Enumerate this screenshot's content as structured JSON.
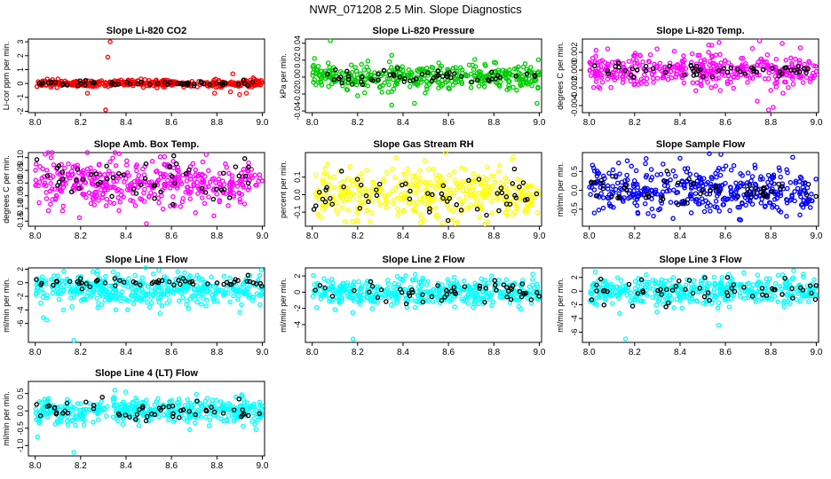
{
  "figure_title": "NWR_071208  2.5 Min. Slope Diagnostics",
  "chart_data": [
    {
      "id": "co2",
      "type": "scatter",
      "title": "Slope Li-820 CO2",
      "ylabel": "Li-cor ppm per min.",
      "xlim": [
        7.97,
        9.01
      ],
      "ylim": [
        -2.1,
        3.2
      ],
      "xticks": [
        "8.0",
        "8.2",
        "8.4",
        "8.6",
        "8.8",
        "9.0"
      ],
      "yticks": [
        {
          "v": -2,
          "label": "-2"
        },
        {
          "v": -1,
          "label": "-1"
        },
        {
          "v": 0,
          "label": "0"
        },
        {
          "v": 1,
          "label": "1"
        },
        {
          "v": 2,
          "label": "2"
        },
        {
          "v": 3,
          "label": "3"
        }
      ],
      "color": "#ff0000",
      "n": 380,
      "center": 0.0,
      "spread": 0.12,
      "black_spread": 0.1,
      "outliers": [
        [
          8.33,
          3.0
        ],
        [
          8.32,
          1.9
        ],
        [
          8.31,
          -1.9
        ],
        [
          8.23,
          -0.7
        ],
        [
          8.87,
          0.7
        ],
        [
          8.86,
          -0.6
        ],
        [
          8.9,
          -0.8
        ],
        [
          8.93,
          -0.7
        ],
        [
          8.79,
          -0.7
        ],
        [
          8.96,
          0.4
        ]
      ]
    },
    {
      "id": "pressure",
      "type": "scatter",
      "title": "Slope Li-820 Pressure",
      "ylabel": "kPa per min.",
      "xlim": [
        7.97,
        9.01
      ],
      "ylim": [
        -0.042,
        0.045
      ],
      "xticks": [
        "8.0",
        "8.2",
        "8.4",
        "8.6",
        "8.8",
        "9.0"
      ],
      "yticks": [
        {
          "v": -0.04,
          "label": "-0.04"
        },
        {
          "v": -0.02,
          "label": "-0.02"
        },
        {
          "v": 0,
          "label": "0.00"
        },
        {
          "v": 0.02,
          "label": "0.02"
        },
        {
          "v": 0.04,
          "label": "0.04"
        }
      ],
      "color": "#00cc00",
      "n": 380,
      "center": 0.0,
      "spread": 0.007,
      "black_spread": 0.004,
      "outliers": [
        [
          8.08,
          0.043
        ],
        [
          8.99,
          -0.031
        ],
        [
          8.35,
          -0.033
        ],
        [
          8.45,
          -0.031
        ],
        [
          8.01,
          0.022
        ],
        [
          8.2,
          -0.022
        ],
        [
          8.76,
          0.015
        ],
        [
          8.93,
          0.012
        ]
      ]
    },
    {
      "id": "temp",
      "type": "scatter",
      "title": "Slope Li-820 Temp.",
      "ylabel": "degrees C per min.",
      "xlim": [
        7.97,
        9.01
      ],
      "ylim": [
        -0.0048,
        0.0035
      ],
      "xticks": [
        "8.0",
        "8.2",
        "8.4",
        "8.6",
        "8.8",
        "9.0"
      ],
      "yticks": [
        {
          "v": -0.004,
          "label": "-0.004"
        },
        {
          "v": -0.002,
          "label": "-0.002"
        },
        {
          "v": 0,
          "label": "0.000"
        },
        {
          "v": 0.002,
          "label": "0.002"
        }
      ],
      "color": "#ff00ff",
      "n": 400,
      "center": 0.0,
      "spread": 0.0009,
      "black_spread": 0.0004,
      "outliers": [
        [
          8.75,
          0.0033
        ],
        [
          8.81,
          -0.0042
        ],
        [
          8.79,
          -0.0045
        ],
        [
          8.54,
          0.0028
        ],
        [
          8.85,
          0.003
        ],
        [
          8.74,
          -0.0035
        ],
        [
          8.93,
          0.0025
        ]
      ]
    },
    {
      "id": "ambbox",
      "type": "scatter",
      "title": "Slope Amb. Box Temp.",
      "ylabel": "degrees C per min.",
      "xlim": [
        7.97,
        9.01
      ],
      "ylim": [
        -0.17,
        0.12
      ],
      "xticks": [
        "8.0",
        "8.2",
        "8.4",
        "8.6",
        "8.8",
        "9.0"
      ],
      "yticks": [
        {
          "v": -0.15,
          "label": "-0.15"
        },
        {
          "v": -0.1,
          "label": "-0.10"
        },
        {
          "v": -0.05,
          "label": "-0.05"
        },
        {
          "v": 0,
          "label": "0.00"
        },
        {
          "v": 0.05,
          "label": "0.05"
        },
        {
          "v": 0.1,
          "label": "0.10"
        }
      ],
      "color": "#ff00ff",
      "n": 420,
      "center": 0.0,
      "spread": 0.05,
      "black_spread": 0.045,
      "outliers": [
        [
          8.49,
          -0.16
        ],
        [
          8.07,
          0.1
        ],
        [
          8.12,
          -0.11
        ]
      ]
    },
    {
      "id": "rh",
      "type": "scatter",
      "title": "Slope Gas Stream RH",
      "ylabel": "percent per min.",
      "xlim": [
        7.97,
        9.01
      ],
      "ylim": [
        -0.18,
        0.24
      ],
      "xticks": [
        "8.0",
        "8.2",
        "8.4",
        "8.6",
        "8.8",
        "9.0"
      ],
      "yticks": [
        {
          "v": -0.1,
          "label": "-0.1"
        },
        {
          "v": 0,
          "label": "0.0"
        },
        {
          "v": 0.1,
          "label": "0.1"
        }
      ],
      "color": "#ffff00",
      "n": 400,
      "center": 0.0,
      "spread": 0.07,
      "black_spread": 0.06,
      "outliers": [
        [
          8.88,
          0.2
        ],
        [
          8.37,
          0.21
        ]
      ]
    },
    {
      "id": "sampleflow",
      "type": "scatter",
      "title": "Slope Sample Flow",
      "ylabel": "ml/min per min.",
      "xlim": [
        7.97,
        9.01
      ],
      "ylim": [
        -0.95,
        1.0
      ],
      "xticks": [
        "8.0",
        "8.2",
        "8.4",
        "8.6",
        "8.8",
        "9.0"
      ],
      "yticks": [
        {
          "v": -0.5,
          "label": "-0.5"
        },
        {
          "v": 0,
          "label": "0.0"
        },
        {
          "v": 0.5,
          "label": "0.5"
        }
      ],
      "color": "#0000ff",
      "n": 420,
      "center": 0.0,
      "spread": 0.3,
      "black_spread": 0.2,
      "outliers": [
        [
          8.58,
          0.95
        ],
        [
          8.4,
          0.85
        ]
      ]
    },
    {
      "id": "line1",
      "type": "scatter",
      "title": "Slope Line 1 Flow",
      "ylabel": "ml/min per min.",
      "xlim": [
        7.97,
        9.01
      ],
      "ylim": [
        -8.8,
        2.2
      ],
      "xticks": [
        "8.0",
        "8.2",
        "8.4",
        "8.6",
        "8.8",
        "9.0"
      ],
      "yticks": [
        {
          "v": -6,
          "label": "-6"
        },
        {
          "v": -4,
          "label": "-4"
        },
        {
          "v": -2,
          "label": "-2"
        },
        {
          "v": 0,
          "label": "0"
        },
        {
          "v": 2,
          "label": "2"
        }
      ],
      "color": "#00ffff",
      "n": 420,
      "center": -1.0,
      "spread": 1.2,
      "black_spread": 0.3,
      "black_center": 0.0,
      "outliers": [
        [
          8.17,
          -8.5
        ],
        [
          8.05,
          -5.5
        ],
        [
          8.55,
          -4.5
        ]
      ]
    },
    {
      "id": "line2",
      "type": "scatter",
      "title": "Slope Line 2 Flow",
      "ylabel": "ml/min per min.",
      "xlim": [
        7.97,
        9.01
      ],
      "ylim": [
        -6.2,
        3.0
      ],
      "xticks": [
        "8.0",
        "8.2",
        "8.4",
        "8.6",
        "8.8",
        "9.0"
      ],
      "yticks": [
        {
          "v": -4,
          "label": "-4"
        },
        {
          "v": -2,
          "label": "-2"
        },
        {
          "v": 0,
          "label": "0"
        },
        {
          "v": 2,
          "label": "2"
        }
      ],
      "color": "#00ffff",
      "n": 420,
      "center": 0.0,
      "spread": 0.8,
      "black_spread": 0.8,
      "outliers": [
        [
          8.18,
          -5.8
        ],
        [
          8.79,
          2.0
        ]
      ]
    },
    {
      "id": "line3",
      "type": "scatter",
      "title": "Slope Line 3 Flow",
      "ylabel": "ml/min per min.",
      "xlim": [
        7.97,
        9.01
      ],
      "ylim": [
        -7.5,
        3.4
      ],
      "xticks": [
        "8.0",
        "8.2",
        "8.4",
        "8.6",
        "8.8",
        "9.0"
      ],
      "yticks": [
        {
          "v": -6,
          "label": "-6"
        },
        {
          "v": -4,
          "label": "-4"
        },
        {
          "v": -2,
          "label": "-2"
        },
        {
          "v": 0,
          "label": "0"
        },
        {
          "v": 2,
          "label": "2"
        }
      ],
      "color": "#00ffff",
      "n": 420,
      "center": 0.0,
      "spread": 1.0,
      "black_spread": 0.9,
      "outliers": [
        [
          8.16,
          -7.0
        ],
        [
          8.57,
          -5.0
        ],
        [
          8.9,
          3.0
        ]
      ]
    },
    {
      "id": "line4",
      "type": "scatter",
      "title": "Slope Line 4 (LT) Flow",
      "ylabel": "ml/min per min.",
      "xlim": [
        7.97,
        9.01
      ],
      "ylim": [
        -1.3,
        0.85
      ],
      "xticks": [
        "8.0",
        "8.2",
        "8.4",
        "8.6",
        "8.8",
        "9.0"
      ],
      "yticks": [
        {
          "v": -1,
          "label": "-1.0"
        },
        {
          "v": -0.5,
          "label": "-0.5"
        },
        {
          "v": 0,
          "label": "0.0"
        },
        {
          "v": 0.5,
          "label": "0.5"
        }
      ],
      "color": "#00ffff",
      "n": 420,
      "center": 0.0,
      "spread": 0.18,
      "black_spread": 0.16,
      "outliers": [
        [
          8.17,
          -1.2
        ],
        [
          8.01,
          -0.75
        ],
        [
          8.35,
          0.6
        ]
      ]
    }
  ]
}
